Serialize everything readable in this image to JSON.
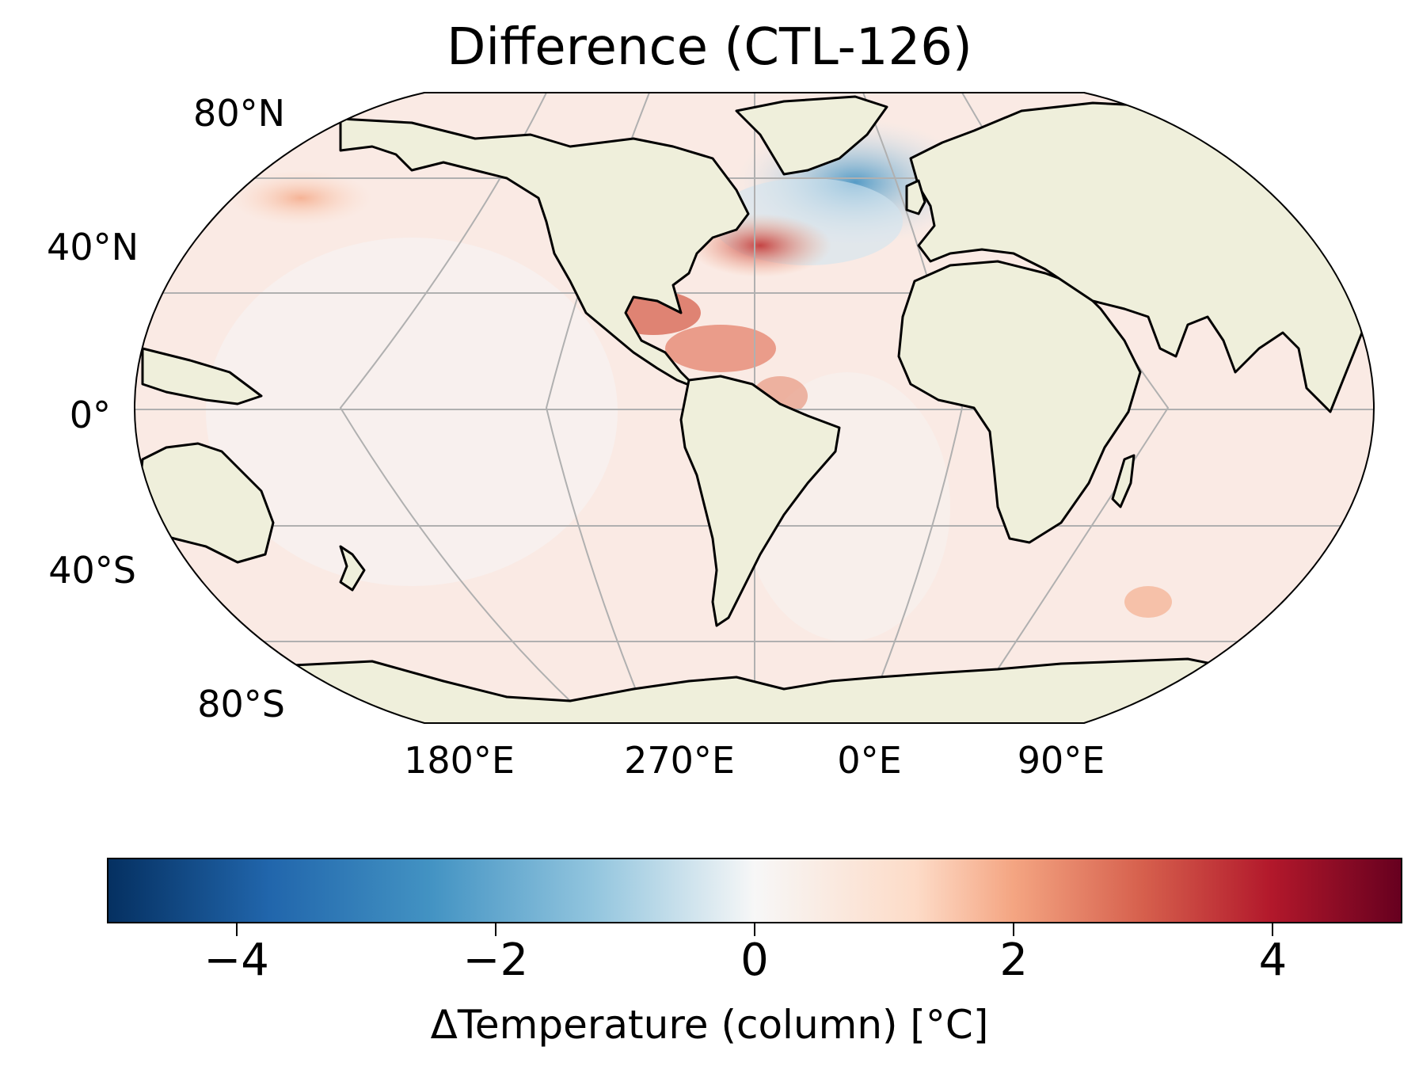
{
  "title": "Difference (CTL-126)",
  "map": {
    "projection": "Robinson",
    "central_longitude": 330,
    "lat_labels": [
      "80°N",
      "40°N",
      "0°",
      "40°S",
      "80°S"
    ],
    "lon_labels": [
      "180°E",
      "270°E",
      "0°E",
      "90°E"
    ],
    "land_color": "#efefdb",
    "coastline_color": "#000000",
    "gridline_color": "#b0b0b0",
    "features": [
      {
        "name": "north-america"
      },
      {
        "name": "south-america"
      },
      {
        "name": "greenland"
      },
      {
        "name": "africa"
      },
      {
        "name": "eurasia"
      },
      {
        "name": "australia"
      },
      {
        "name": "antarctica"
      },
      {
        "name": "madagascar"
      },
      {
        "name": "new-zealand"
      },
      {
        "name": "uk"
      }
    ]
  },
  "colorbar": {
    "colormap": "RdBu_r",
    "vmin": -5,
    "vmax": 5,
    "ticks": [
      -4,
      -2,
      0,
      2,
      4
    ],
    "tick_labels": [
      "−4",
      "−2",
      "0",
      "2",
      "4"
    ],
    "label": "ΔTemperature (column) [°C]"
  },
  "anomalies": [
    {
      "region": "Gulf Stream / US east coast",
      "sign": "positive",
      "approx_max": 4
    },
    {
      "region": "Gulf of Mexico / Caribbean",
      "sign": "positive",
      "approx_max": 3
    },
    {
      "region": "Subpolar North Atlantic (Labrador–Irminger)",
      "sign": "negative",
      "approx_min": -2
    },
    {
      "region": "Kuroshio extension",
      "sign": "positive",
      "approx_max": 1.5
    }
  ]
}
